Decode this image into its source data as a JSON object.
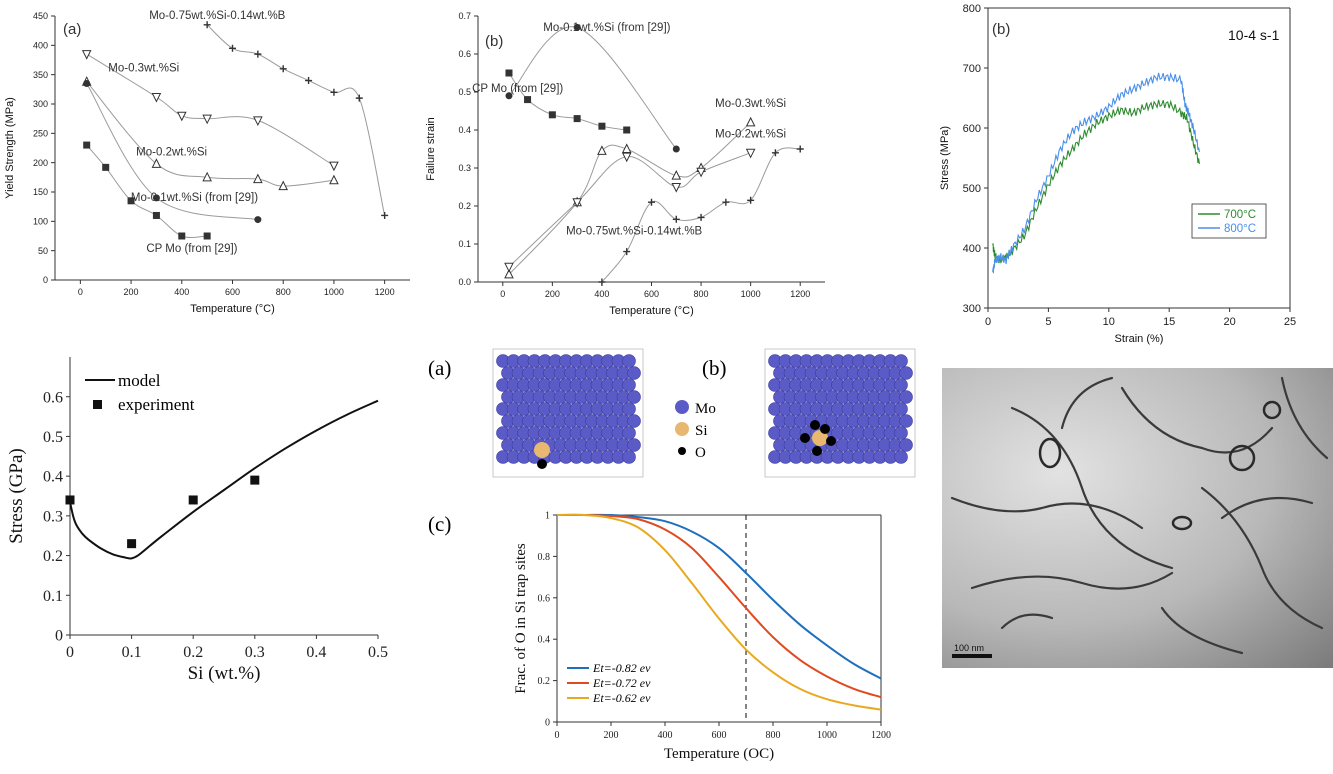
{
  "chart_data": [
    {
      "id": "yield",
      "type": "line",
      "panel_label": "(a)",
      "xlabel": "Temperature (°C)",
      "ylabel": "Yield Strength (MPa)",
      "xlim": [
        -100,
        1300
      ],
      "ylim": [
        0,
        450
      ],
      "xticks": [
        0,
        200,
        400,
        600,
        800,
        1000,
        1200
      ],
      "yticks": [
        0,
        50,
        100,
        150,
        200,
        250,
        300,
        350,
        400,
        450
      ],
      "series": [
        {
          "name": "Mo-0.75wt.%Si-0.14wt.%B",
          "marker": "plus",
          "x": [
            500,
            600,
            700,
            800,
            900,
            1000,
            1100,
            1200
          ],
          "y": [
            435,
            395,
            385,
            360,
            340,
            320,
            310,
            110
          ]
        },
        {
          "name": "Mo-0.3wt.%Si",
          "marker": "tri-down",
          "x": [
            25,
            300,
            400,
            500,
            700,
            1000
          ],
          "y": [
            385,
            312,
            280,
            275,
            272,
            195
          ]
        },
        {
          "name": "Mo-0.2wt.%Si",
          "marker": "tri-up",
          "x": [
            25,
            300,
            500,
            700,
            800,
            1000
          ],
          "y": [
            338,
            198,
            175,
            172,
            160,
            170
          ]
        },
        {
          "name": "Mo-0.1wt.%Si (from [29])",
          "marker": "circle",
          "x": [
            25,
            300,
            700
          ],
          "y": [
            335,
            140,
            103
          ]
        },
        {
          "name": "CP Mo (from [29])",
          "marker": "square",
          "x": [
            25,
            100,
            200,
            300,
            400,
            500
          ],
          "y": [
            230,
            192,
            135,
            110,
            75,
            75
          ]
        }
      ],
      "annotations": [
        {
          "text": "Mo-0.75wt.%Si-0.14wt.%B",
          "x": 540,
          "y": 445
        },
        {
          "text": "Mo-0.3wt.%Si",
          "x": 250,
          "y": 355
        },
        {
          "text": "Mo-0.2wt.%Si",
          "x": 360,
          "y": 212
        },
        {
          "text": "Mo-0.1wt.%Si (from [29])",
          "x": 450,
          "y": 135
        },
        {
          "text": "CP Mo (from [29])",
          "x": 440,
          "y": 48
        }
      ]
    },
    {
      "id": "failure",
      "type": "line",
      "panel_label": "(b)",
      "xlabel": "Temperature (°C)",
      "ylabel": "Failure strain",
      "xlim": [
        -100,
        1300
      ],
      "ylim": [
        0,
        0.7
      ],
      "xticks": [
        0,
        200,
        400,
        600,
        800,
        1000,
        1200
      ],
      "yticks": [
        0,
        0.1,
        0.2,
        0.3,
        0.4,
        0.5,
        0.6,
        0.7
      ],
      "series": [
        {
          "name": "Mo-0.1wt.%Si (from [29])",
          "marker": "circle",
          "x": [
            25,
            300,
            700
          ],
          "y": [
            0.49,
            0.67,
            0.35
          ]
        },
        {
          "name": "CP Mo (from [29])",
          "marker": "square",
          "x": [
            25,
            100,
            200,
            300,
            400,
            500
          ],
          "y": [
            0.55,
            0.48,
            0.44,
            0.43,
            0.41,
            0.4
          ]
        },
        {
          "name": "Mo-0.3wt.%Si",
          "marker": "tri-up",
          "x": [
            25,
            300,
            400,
            500,
            700,
            800,
            1000
          ],
          "y": [
            0.02,
            0.21,
            0.345,
            0.35,
            0.28,
            0.3,
            0.42
          ]
        },
        {
          "name": "Mo-0.2wt.%Si",
          "marker": "tri-down",
          "x": [
            25,
            300,
            500,
            700,
            800,
            1000
          ],
          "y": [
            0.04,
            0.21,
            0.33,
            0.25,
            0.29,
            0.34
          ]
        },
        {
          "name": "Mo-0.75wt.%Si-0.14wt.%B",
          "marker": "plus",
          "x": [
            400,
            500,
            600,
            700,
            800,
            900,
            1000,
            1100,
            1200
          ],
          "y": [
            0.0,
            0.08,
            0.21,
            0.165,
            0.17,
            0.21,
            0.215,
            0.34,
            0.35
          ]
        }
      ],
      "annotations": [
        {
          "text": "Mo-0.1wt.%Si (from [29])",
          "x": 420,
          "y": 0.66
        },
        {
          "text": "CP Mo (from [29])",
          "x": 60,
          "y": 0.5
        },
        {
          "text": "Mo-0.3wt.%Si",
          "x": 1000,
          "y": 0.46
        },
        {
          "text": "Mo-0.2wt.%Si",
          "x": 1000,
          "y": 0.38
        },
        {
          "text": "Mo-0.75wt.%Si-0.14wt.%B",
          "x": 530,
          "y": 0.125
        }
      ]
    },
    {
      "id": "stress-strain",
      "type": "line",
      "panel_label": "(b)",
      "rate_label": "10-4 s-1",
      "xlabel": "Strain (%)",
      "ylabel": "Stress (MPa)",
      "xlim": [
        0,
        25
      ],
      "ylim": [
        300,
        800
      ],
      "xticks": [
        0,
        5,
        10,
        15,
        20,
        25
      ],
      "yticks": [
        300,
        400,
        500,
        600,
        700,
        800
      ],
      "legend_position": "bottom-right",
      "series": [
        {
          "name": "700°C",
          "color": "#2e8b2e",
          "x": [
            0.4,
            0.6,
            1,
            1.5,
            2,
            3,
            4,
            5,
            6,
            7,
            8,
            9,
            10,
            11,
            12,
            13,
            14,
            15,
            16,
            16.5,
            17,
            17.5
          ],
          "y": [
            405,
            385,
            380,
            385,
            395,
            420,
            465,
            505,
            540,
            565,
            590,
            608,
            620,
            630,
            625,
            635,
            640,
            640,
            625,
            615,
            575,
            540
          ]
        },
        {
          "name": "800°C",
          "color": "#4a8fe8",
          "x": [
            0.4,
            0.6,
            1,
            1.5,
            2,
            3,
            4,
            5,
            6,
            7,
            8,
            9,
            10,
            11,
            12,
            13,
            14,
            15,
            16,
            16.3,
            16.6,
            17,
            17.5
          ],
          "y": [
            360,
            380,
            385,
            380,
            400,
            430,
            480,
            520,
            565,
            595,
            610,
            620,
            635,
            655,
            665,
            675,
            685,
            685,
            680,
            640,
            625,
            600,
            560
          ]
        }
      ]
    },
    {
      "id": "model",
      "type": "line",
      "xlabel": "Si (wt.%)",
      "ylabel": "Stress (GPa)",
      "xlim": [
        0,
        0.5
      ],
      "ylim": [
        0,
        0.7
      ],
      "xticks": [
        0,
        0.1,
        0.2,
        0.3,
        0.4,
        0.5
      ],
      "yticks": [
        0,
        0.1,
        0.2,
        0.3,
        0.4,
        0.5,
        0.6
      ],
      "legend_position": "top-left",
      "series": [
        {
          "name": "model",
          "style": "line",
          "x": [
            0,
            0.005,
            0.01,
            0.02,
            0.03,
            0.05,
            0.07,
            0.09,
            0.1,
            0.11,
            0.13,
            0.15,
            0.2,
            0.25,
            0.3,
            0.35,
            0.4,
            0.45,
            0.5
          ],
          "y": [
            0.335,
            0.3,
            0.278,
            0.255,
            0.24,
            0.218,
            0.203,
            0.195,
            0.193,
            0.2,
            0.225,
            0.25,
            0.31,
            0.365,
            0.42,
            0.47,
            0.515,
            0.555,
            0.59
          ]
        },
        {
          "name": "experiment",
          "style": "square",
          "x": [
            0,
            0.1,
            0.2,
            0.3
          ],
          "y": [
            0.34,
            0.23,
            0.34,
            0.39
          ]
        }
      ]
    },
    {
      "id": "trap",
      "type": "line",
      "panel_label": "(c)",
      "xlabel": "Temperature (OC)",
      "ylabel": "Frac. of O in Si trap sites",
      "xlim": [
        0,
        1200
      ],
      "ylim": [
        0,
        1
      ],
      "xticks": [
        0,
        200,
        400,
        600,
        800,
        1000,
        1200
      ],
      "yticks": [
        0,
        0.2,
        0.4,
        0.6,
        0.8,
        1
      ],
      "vline_x": 700,
      "legend_position": "bottom-left",
      "series": [
        {
          "name": "Et=-0.82 ev",
          "color": "#1f6fbf",
          "x": [
            0,
            100,
            200,
            300,
            400,
            500,
            600,
            700,
            800,
            900,
            1000,
            1100,
            1200
          ],
          "y": [
            1,
            1,
            1,
            0.99,
            0.97,
            0.92,
            0.84,
            0.72,
            0.59,
            0.47,
            0.37,
            0.28,
            0.21
          ]
        },
        {
          "name": "Et=-0.72 ev",
          "color": "#e04a1f",
          "x": [
            0,
            100,
            200,
            300,
            400,
            500,
            600,
            700,
            800,
            900,
            1000,
            1100,
            1200
          ],
          "y": [
            1,
            1,
            0.995,
            0.98,
            0.93,
            0.84,
            0.7,
            0.55,
            0.41,
            0.3,
            0.22,
            0.16,
            0.12
          ]
        },
        {
          "name": "Et=-0.62 ev",
          "color": "#e8a91e",
          "x": [
            0,
            100,
            200,
            300,
            400,
            500,
            600,
            700,
            800,
            900,
            1000,
            1100,
            1200
          ],
          "y": [
            1,
            1,
            0.985,
            0.94,
            0.83,
            0.67,
            0.5,
            0.35,
            0.24,
            0.16,
            0.11,
            0.08,
            0.06
          ]
        }
      ]
    }
  ],
  "atoms": {
    "label_a": "(a)",
    "label_b": "(b)",
    "legend": [
      {
        "name": "Mo",
        "color": "#5b5bc8"
      },
      {
        "name": "Si",
        "color": "#e8b870"
      },
      {
        "name": "O",
        "color": "#000000"
      }
    ]
  },
  "tem": {
    "scale_text": "100 nm"
  }
}
